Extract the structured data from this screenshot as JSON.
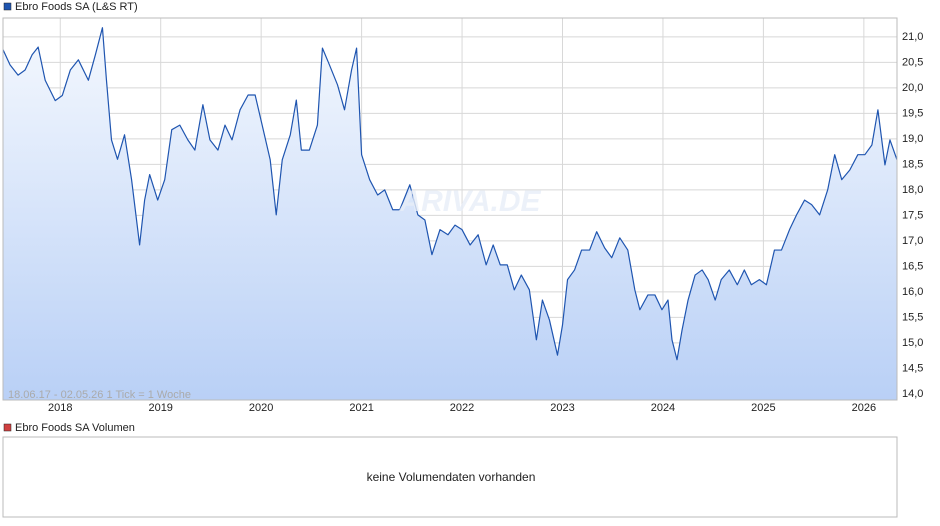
{
  "chart_data": {
    "type": "line",
    "legend": "Ebro Foods SA (L&S RT)",
    "range_note": "18.06.17 - 02.05.26   1 Tick = 1 Woche",
    "watermark": "ARIVA.DE",
    "x": [
      2017.43,
      2017.5,
      2017.58,
      2017.65,
      2017.72,
      2017.78,
      2017.85,
      2017.95,
      2018.02,
      2018.1,
      2018.18,
      2018.28,
      2018.35,
      2018.42,
      2018.46,
      2018.51,
      2018.57,
      2018.64,
      2018.71,
      2018.79,
      2018.84,
      2018.89,
      2018.97,
      2019.04,
      2019.11,
      2019.19,
      2019.27,
      2019.34,
      2019.42,
      2019.49,
      2019.57,
      2019.64,
      2019.71,
      2019.79,
      2019.87,
      2019.94,
      2020.01,
      2020.09,
      2020.15,
      2020.21,
      2020.29,
      2020.35,
      2020.4,
      2020.48,
      2020.56,
      2020.61,
      2020.68,
      2020.76,
      2020.83,
      2020.9,
      2020.95,
      2021.0,
      2021.08,
      2021.16,
      2021.23,
      2021.31,
      2021.38,
      2021.48,
      2021.56,
      2021.63,
      2021.7,
      2021.78,
      2021.86,
      2021.93,
      2022.0,
      2022.08,
      2022.16,
      2022.24,
      2022.31,
      2022.38,
      2022.45,
      2022.52,
      2022.59,
      2022.67,
      2022.74,
      2022.8,
      2022.87,
      2022.95,
      2023.0,
      2023.05,
      2023.12,
      2023.19,
      2023.27,
      2023.34,
      2023.42,
      2023.49,
      2023.57,
      2023.65,
      2023.72,
      2023.77,
      2023.85,
      2023.92,
      2023.99,
      2024.05,
      2024.09,
      2024.14,
      2024.19,
      2024.25,
      2024.32,
      2024.39,
      2024.45,
      2024.52,
      2024.58,
      2024.66,
      2024.74,
      2024.81,
      2024.88,
      2024.96,
      2025.03,
      2025.11,
      2025.18,
      2025.26,
      2025.33,
      2025.41,
      2025.48,
      2025.56,
      2025.64,
      2025.71,
      2025.78,
      2025.86,
      2025.94,
      2026.01,
      2026.08,
      2026.14,
      2026.21,
      2026.26,
      2026.33
    ],
    "series": [
      {
        "name": "Ebro Foods SA (L&S RT)",
        "color": "#1f55b0",
        "values": [
          20.75,
          20.45,
          20.25,
          20.35,
          20.65,
          20.8,
          20.15,
          19.75,
          19.85,
          20.35,
          20.55,
          20.15,
          20.65,
          21.18,
          20.15,
          18.98,
          18.6,
          19.08,
          18.2,
          16.92,
          17.8,
          18.3,
          17.8,
          18.2,
          19.18,
          19.27,
          18.98,
          18.78,
          19.67,
          18.98,
          18.78,
          19.27,
          18.98,
          19.57,
          19.86,
          19.86,
          19.27,
          18.59,
          17.51,
          18.59,
          19.08,
          19.76,
          18.78,
          18.78,
          19.27,
          20.78,
          20.45,
          20.06,
          19.57,
          20.35,
          20.78,
          18.69,
          18.2,
          17.9,
          18.0,
          17.61,
          17.61,
          18.1,
          17.51,
          17.41,
          16.73,
          17.22,
          17.12,
          17.31,
          17.22,
          16.92,
          17.12,
          16.53,
          16.92,
          16.53,
          16.53,
          16.04,
          16.33,
          16.04,
          15.06,
          15.84,
          15.45,
          14.76,
          15.35,
          16.24,
          16.43,
          16.82,
          16.82,
          17.18,
          16.86,
          16.67,
          17.06,
          16.82,
          16.04,
          15.65,
          15.94,
          15.94,
          15.65,
          15.84,
          15.06,
          14.67,
          15.25,
          15.84,
          16.33,
          16.43,
          16.24,
          15.84,
          16.24,
          16.43,
          16.14,
          16.43,
          16.14,
          16.24,
          16.14,
          16.82,
          16.82,
          17.22,
          17.51,
          17.8,
          17.71,
          17.51,
          18.0,
          18.69,
          18.2,
          18.39,
          18.69,
          18.69,
          18.88,
          19.57,
          18.49,
          18.98,
          18.59
        ]
      }
    ],
    "xlim": [
      2017.43,
      2026.33
    ],
    "xticks": [
      2018,
      2019,
      2020,
      2021,
      2022,
      2023,
      2024,
      2025,
      2026
    ],
    "ylim": [
      13.88,
      21.37
    ],
    "yticks": [
      {
        "value": 14,
        "label": "14,0"
      },
      {
        "value": 14.5,
        "label": "14,5"
      },
      {
        "value": 15,
        "label": "15,0"
      },
      {
        "value": 15.5,
        "label": "15,5"
      },
      {
        "value": 16,
        "label": "16,0"
      },
      {
        "value": 16.5,
        "label": "16,5"
      },
      {
        "value": 17,
        "label": "17,0"
      },
      {
        "value": 17.5,
        "label": "17,5"
      },
      {
        "value": 18,
        "label": "18,0"
      },
      {
        "value": 18.5,
        "label": "18,5"
      },
      {
        "value": 19,
        "label": "19,0"
      },
      {
        "value": 19.5,
        "label": "19,5"
      },
      {
        "value": 20,
        "label": "20,0"
      },
      {
        "value": 20.5,
        "label": "20,5"
      },
      {
        "value": 21,
        "label": "21,0"
      }
    ],
    "grid": true
  },
  "volume_panel": {
    "legend": "Ebro Foods SA Volumen",
    "color": "#d04040",
    "message": "keine Volumendaten vorhanden"
  }
}
